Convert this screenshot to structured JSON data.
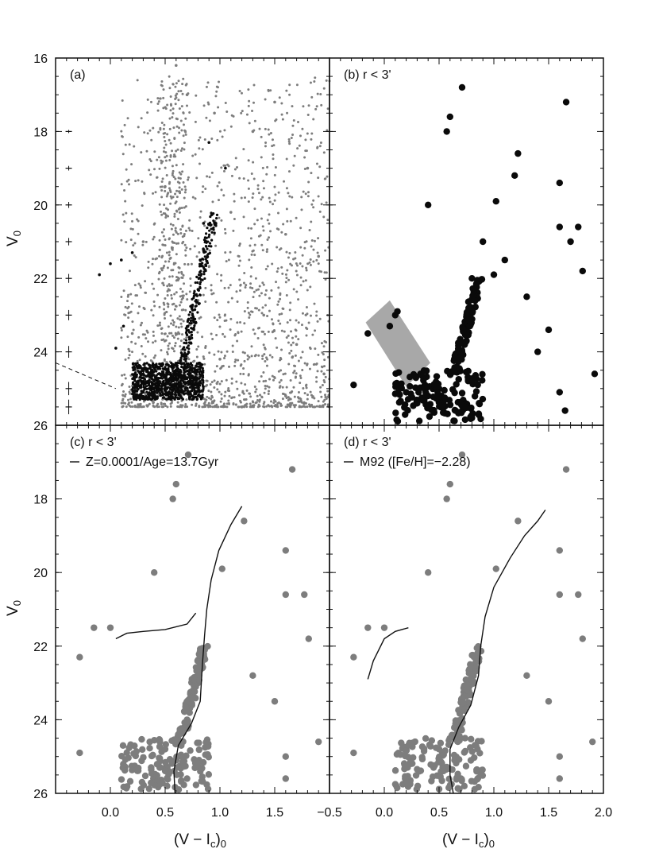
{
  "figure": {
    "colors": {
      "frame": "#111111",
      "black_dot": "#0a0a0a",
      "gray_dot": "#7d7d7d",
      "shade": "#a8a8a8",
      "curve": "#111111"
    },
    "axes": {
      "x_label_main": "(V − I",
      "x_label_sub": "c",
      "x_label_close": ")",
      "x_label_sub0": "0",
      "y_label_main": "V",
      "y_label_sub": "0"
    }
  },
  "chart_data": [
    {
      "panel": "a",
      "type": "scatter",
      "title": "(a)",
      "xlim": [
        -0.5,
        2.0
      ],
      "ylim": [
        26,
        16
      ],
      "inverted_y": true,
      "grid": false,
      "series": [
        {
          "role": "field stars",
          "color": "gray",
          "points_summary": "dense cloud spanning V-I 0.2-2.0, V 17-26, concentrated at V 24.5-26",
          "points": [
            [
              0.6,
              16.2
            ],
            [
              0.7,
              17.0
            ],
            [
              0.95,
              17.5
            ],
            [
              1.3,
              18.0
            ],
            [
              1.5,
              17.2
            ],
            [
              1.8,
              19.0
            ],
            [
              0.5,
              19.5
            ],
            [
              1.1,
              20.2
            ],
            [
              1.6,
              20.8
            ],
            [
              0.3,
              21.0
            ],
            [
              1.9,
              21.4
            ],
            [
              0.8,
              22.6
            ],
            [
              1.4,
              23.0
            ],
            [
              0.2,
              23.5
            ],
            [
              1.7,
              23.8
            ],
            [
              1.0,
              24.2
            ],
            [
              1.95,
              24.6
            ],
            [
              0.4,
              25.3
            ],
            [
              1.2,
              25.5
            ],
            [
              1.6,
              25.2
            ]
          ]
        },
        {
          "role": "selected stars",
          "color": "black",
          "points_summary": "RGB 0.6-1.0 at V 20-24.5, HB near V 21.5 at V-I 0-0.2, dense MSTO clump at V 24.5-25.3",
          "points": [
            [
              -0.1,
              21.9
            ],
            [
              0.0,
              21.6
            ],
            [
              0.1,
              21.5
            ],
            [
              0.2,
              21.3
            ],
            [
              0.85,
              20.5
            ],
            [
              0.82,
              21.5
            ],
            [
              0.8,
              22.3
            ],
            [
              0.75,
              23.0
            ],
            [
              0.72,
              23.6
            ],
            [
              0.68,
              24.2
            ],
            [
              0.3,
              24.6
            ],
            [
              0.5,
              24.9
            ],
            [
              0.65,
              25.1
            ],
            [
              0.8,
              25.2
            ],
            [
              0.9,
              18.3
            ],
            [
              1.05,
              19.0
            ],
            [
              0.05,
              23.9
            ],
            [
              0.12,
              23.3
            ]
          ]
        },
        {
          "role": "error bars",
          "type": "errorbar",
          "x": -0.38,
          "y": [
            18,
            19,
            20,
            21,
            22,
            23,
            24,
            25,
            25.5
          ]
        }
      ],
      "annotations": [
        "dashed reddening line from (-0.5,24.3) toward (0.0,25.0)"
      ]
    },
    {
      "panel": "b",
      "type": "scatter",
      "title": "(b) r < 3'",
      "xlim": [
        -0.5,
        2.0
      ],
      "ylim": [
        26,
        16
      ],
      "series": [
        {
          "role": "stars within 3 arcmin",
          "color": "black",
          "points": [
            [
              0.71,
              16.8
            ],
            [
              0.6,
              17.6
            ],
            [
              0.57,
              18.0
            ],
            [
              1.66,
              17.2
            ],
            [
              1.22,
              18.6
            ],
            [
              1.19,
              19.2
            ],
            [
              1.6,
              19.4
            ],
            [
              1.02,
              19.9
            ],
            [
              0.4,
              20.0
            ],
            [
              1.6,
              20.6
            ],
            [
              1.77,
              20.6
            ],
            [
              1.7,
              21.0
            ],
            [
              1.81,
              21.8
            ],
            [
              -0.15,
              23.5
            ],
            [
              0.05,
              23.3
            ],
            [
              0.1,
              23.0
            ],
            [
              0.12,
              22.9
            ],
            [
              0.8,
              22.0
            ],
            [
              0.82,
              22.5
            ],
            [
              0.78,
              23.1
            ],
            [
              0.75,
              23.7
            ],
            [
              0.7,
              24.2
            ],
            [
              0.6,
              24.6
            ],
            [
              0.5,
              25.0
            ],
            [
              0.55,
              25.3
            ],
            [
              0.65,
              25.6
            ],
            [
              0.4,
              25.2
            ],
            [
              0.3,
              25.4
            ],
            [
              0.9,
              21.0
            ],
            [
              1.0,
              21.9
            ],
            [
              1.1,
              21.5
            ],
            [
              1.3,
              22.5
            ],
            [
              1.5,
              23.4
            ],
            [
              1.4,
              24.0
            ],
            [
              1.6,
              25.1
            ],
            [
              1.65,
              25.6
            ],
            [
              1.92,
              24.6
            ],
            [
              -0.28,
              24.9
            ],
            [
              0.2,
              25.1
            ],
            [
              0.8,
              25.8
            ]
          ]
        }
      ],
      "annotations": [
        "gray shaded band from about (0.0,22.8) to (0.5,24.5)"
      ]
    },
    {
      "panel": "c",
      "type": "scatter",
      "title": "(c) r < 3'",
      "legend": [
        "Z=0.0001/Age=13.7Gyr"
      ],
      "xlim": [
        -0.5,
        2.0
      ],
      "ylim": [
        26,
        16
      ],
      "series": [
        {
          "role": "stars",
          "color": "gray",
          "points": [
            [
              0.71,
              16.8
            ],
            [
              0.6,
              17.6
            ],
            [
              0.57,
              18.0
            ],
            [
              1.66,
              17.2
            ],
            [
              1.22,
              18.6
            ],
            [
              1.6,
              19.4
            ],
            [
              1.02,
              19.9
            ],
            [
              0.4,
              20.0
            ],
            [
              1.6,
              20.6
            ],
            [
              1.77,
              20.6
            ],
            [
              1.81,
              21.8
            ],
            [
              -0.28,
              22.3
            ],
            [
              -0.15,
              21.5
            ],
            [
              0.0,
              21.5
            ],
            [
              0.85,
              22.2
            ],
            [
              0.8,
              23.0
            ],
            [
              0.7,
              24.0
            ],
            [
              0.5,
              24.8
            ],
            [
              0.45,
              25.3
            ],
            [
              0.7,
              25.6
            ],
            [
              1.3,
              22.8
            ],
            [
              1.5,
              23.5
            ],
            [
              1.9,
              24.6
            ],
            [
              -0.28,
              24.9
            ],
            [
              1.6,
              25.0
            ],
            [
              1.6,
              25.6
            ]
          ]
        },
        {
          "role": "isochrone",
          "type": "line",
          "name": "Z=0.0001/Age=13.7Gyr",
          "x": [
            0.59,
            0.58,
            0.62,
            0.74,
            0.82,
            0.84,
            0.86,
            0.88,
            0.92,
            0.99,
            1.1,
            1.2
          ],
          "y": [
            26.0,
            25.4,
            24.7,
            24.1,
            23.5,
            22.5,
            21.7,
            21.0,
            20.2,
            19.4,
            18.7,
            18.2
          ]
        },
        {
          "role": "horizontal branch",
          "type": "line",
          "x": [
            0.05,
            0.15,
            0.3,
            0.5,
            0.7,
            0.78
          ],
          "y": [
            21.8,
            21.65,
            21.6,
            21.55,
            21.4,
            21.1
          ]
        }
      ]
    },
    {
      "panel": "d",
      "type": "scatter",
      "title": "(d) r < 3'",
      "legend": [
        "M92 ([Fe/H]=−2.28)"
      ],
      "xlim": [
        -0.5,
        2.0
      ],
      "ylim": [
        26,
        16
      ],
      "series": [
        {
          "role": "stars",
          "color": "gray",
          "points": [
            [
              0.71,
              16.8
            ],
            [
              0.6,
              17.6
            ],
            [
              0.57,
              18.0
            ],
            [
              1.66,
              17.2
            ],
            [
              1.22,
              18.6
            ],
            [
              1.6,
              19.4
            ],
            [
              1.02,
              19.9
            ],
            [
              0.4,
              20.0
            ],
            [
              1.6,
              20.6
            ],
            [
              1.77,
              20.6
            ],
            [
              1.81,
              21.8
            ],
            [
              -0.28,
              22.3
            ],
            [
              -0.15,
              21.5
            ],
            [
              0.0,
              21.5
            ],
            [
              0.85,
              22.2
            ],
            [
              0.8,
              23.0
            ],
            [
              0.7,
              24.0
            ],
            [
              0.5,
              24.8
            ],
            [
              0.45,
              25.3
            ],
            [
              0.7,
              25.6
            ],
            [
              1.3,
              22.8
            ],
            [
              1.5,
              23.5
            ],
            [
              1.9,
              24.6
            ],
            [
              -0.28,
              24.9
            ],
            [
              1.6,
              25.0
            ],
            [
              1.6,
              25.6
            ]
          ]
        },
        {
          "role": "fiducial",
          "type": "line",
          "name": "M92",
          "x": [
            0.63,
            0.6,
            0.6,
            0.68,
            0.79,
            0.86,
            0.88,
            0.92,
            1.0,
            1.15,
            1.28,
            1.4,
            1.47
          ],
          "y": [
            26.0,
            25.5,
            24.8,
            24.2,
            23.6,
            22.8,
            22.0,
            21.2,
            20.4,
            19.6,
            19.0,
            18.6,
            18.3
          ]
        },
        {
          "role": "horizontal branch",
          "type": "line",
          "x": [
            -0.15,
            -0.1,
            0.0,
            0.1,
            0.22
          ],
          "y": [
            22.9,
            22.4,
            21.8,
            21.6,
            21.5
          ]
        }
      ]
    }
  ],
  "ticks": {
    "x": [
      "-0.5",
      "0.0",
      "0.5",
      "1.0",
      "1.5",
      "2.0"
    ],
    "x_values": [
      -0.5,
      0.0,
      0.5,
      1.0,
      1.5,
      2.0
    ],
    "y": [
      "16",
      "18",
      "20",
      "22",
      "24",
      "26"
    ],
    "y_values": [
      16,
      18,
      20,
      22,
      24,
      26
    ],
    "bottom_left_labels": [
      "0.0",
      "0.5",
      "1.0",
      "1.5"
    ],
    "bottom_right_labels": [
      "−0.5",
      "0.0",
      "0.5",
      "1.0",
      "1.5",
      "2.0"
    ],
    "left_top_labels": [
      "16",
      "18",
      "20",
      "22",
      "24",
      "26"
    ],
    "left_bottom_labels": [
      "18",
      "20",
      "22",
      "24",
      "26"
    ]
  }
}
